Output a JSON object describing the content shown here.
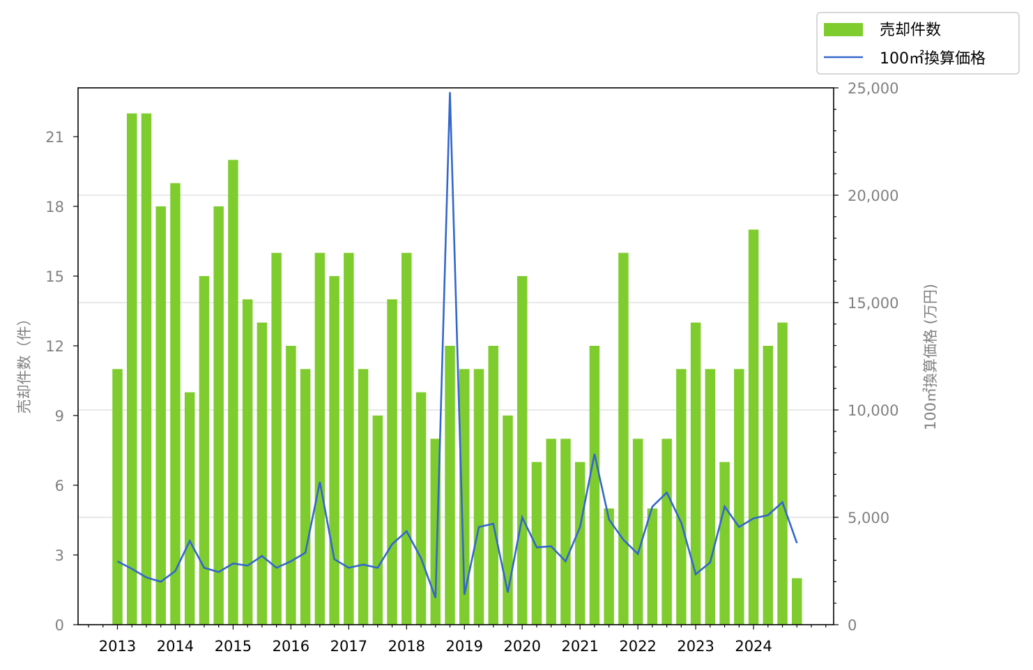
{
  "chart_data": {
    "type": "bar",
    "x_tick_labels": [
      "2013",
      "2014",
      "2015",
      "2016",
      "2017",
      "2018",
      "2019",
      "2020",
      "2021",
      "2022",
      "2023",
      "2024"
    ],
    "series": [
      {
        "name": "売却件数",
        "type": "bar",
        "axis": "left",
        "color": "#7fcc2e",
        "values": [
          11,
          22,
          22,
          18,
          19,
          10,
          15,
          18,
          20,
          14,
          13,
          16,
          12,
          11,
          16,
          15,
          16,
          11,
          9,
          14,
          16,
          10,
          8,
          12,
          11,
          11,
          12,
          9,
          15,
          7,
          8,
          8,
          7,
          12,
          5,
          16,
          8,
          5,
          8,
          11,
          13,
          11,
          7,
          11,
          17,
          12,
          13,
          2
        ]
      },
      {
        "name": "100㎡換算価格",
        "type": "line",
        "axis": "right",
        "color": "#3366cc",
        "values": [
          2950,
          2600,
          2200,
          2000,
          2500,
          3900,
          2650,
          2450,
          2850,
          2750,
          3200,
          2650,
          2950,
          3350,
          6650,
          3050,
          2650,
          2800,
          2650,
          3750,
          4350,
          3100,
          1250,
          24800,
          1400,
          4550,
          4700,
          1500,
          5000,
          3600,
          3650,
          2950,
          4550,
          7950,
          4900,
          3950,
          3300,
          5500,
          6150,
          4750,
          2350,
          2900,
          5500,
          4550,
          4950,
          5100,
          5700,
          3800
        ]
      }
    ],
    "x_start_year": 2013,
    "periods_per_year": 4,
    "ylim_left": [
      0,
      23.1
    ],
    "ylim_right": [
      0,
      25000
    ],
    "yticks_left": [
      "0",
      "3",
      "6",
      "9",
      "12",
      "15",
      "18",
      "21"
    ],
    "yticks_right": [
      "0",
      "5,000",
      "10,000",
      "15,000",
      "20,000",
      "25,000"
    ],
    "ylabel_left": "売却件数（件）",
    "ylabel_right": "100㎡換算価格 (万円)",
    "grid": "horizontal (right axis)",
    "legend_position": "top-right"
  },
  "legend": {
    "bar_label": "売却件数",
    "line_label": "100㎡換算価格"
  },
  "colors": {
    "bar": "#7fcc2e",
    "line": "#3366cc",
    "grid": "#d9d9d9",
    "tick_text_left_right": "#808080",
    "tick_text_bottom": "#000000"
  }
}
